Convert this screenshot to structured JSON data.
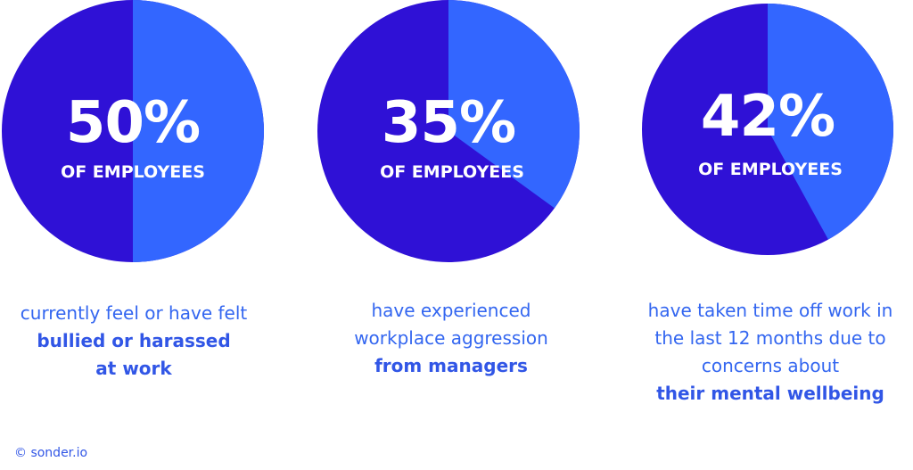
{
  "colors": {
    "dark": "#2f11d6",
    "light": "#3366ff",
    "text": "#3156e6"
  },
  "chart_data": [
    {
      "type": "pie",
      "value_percent": 50,
      "label": "50%",
      "sublabel": "OF EMPLOYEES",
      "description": [
        "currently feel or have felt"
      ],
      "highlight": [
        "bullied or harassed",
        "at work"
      ]
    },
    {
      "type": "pie",
      "value_percent": 35,
      "label": "35%",
      "sublabel": "OF EMPLOYEES",
      "description": [
        "have experienced",
        "workplace aggression"
      ],
      "highlight": [
        "from managers"
      ]
    },
    {
      "type": "pie",
      "value_percent": 42,
      "label": "42%",
      "sublabel": "OF EMPLOYEES",
      "description": [
        "have taken time off work in",
        "the last 12 months due to",
        "concerns about"
      ],
      "highlight": [
        "their mental wellbeing"
      ]
    }
  ],
  "footer": {
    "credit": "© sonder.io"
  }
}
